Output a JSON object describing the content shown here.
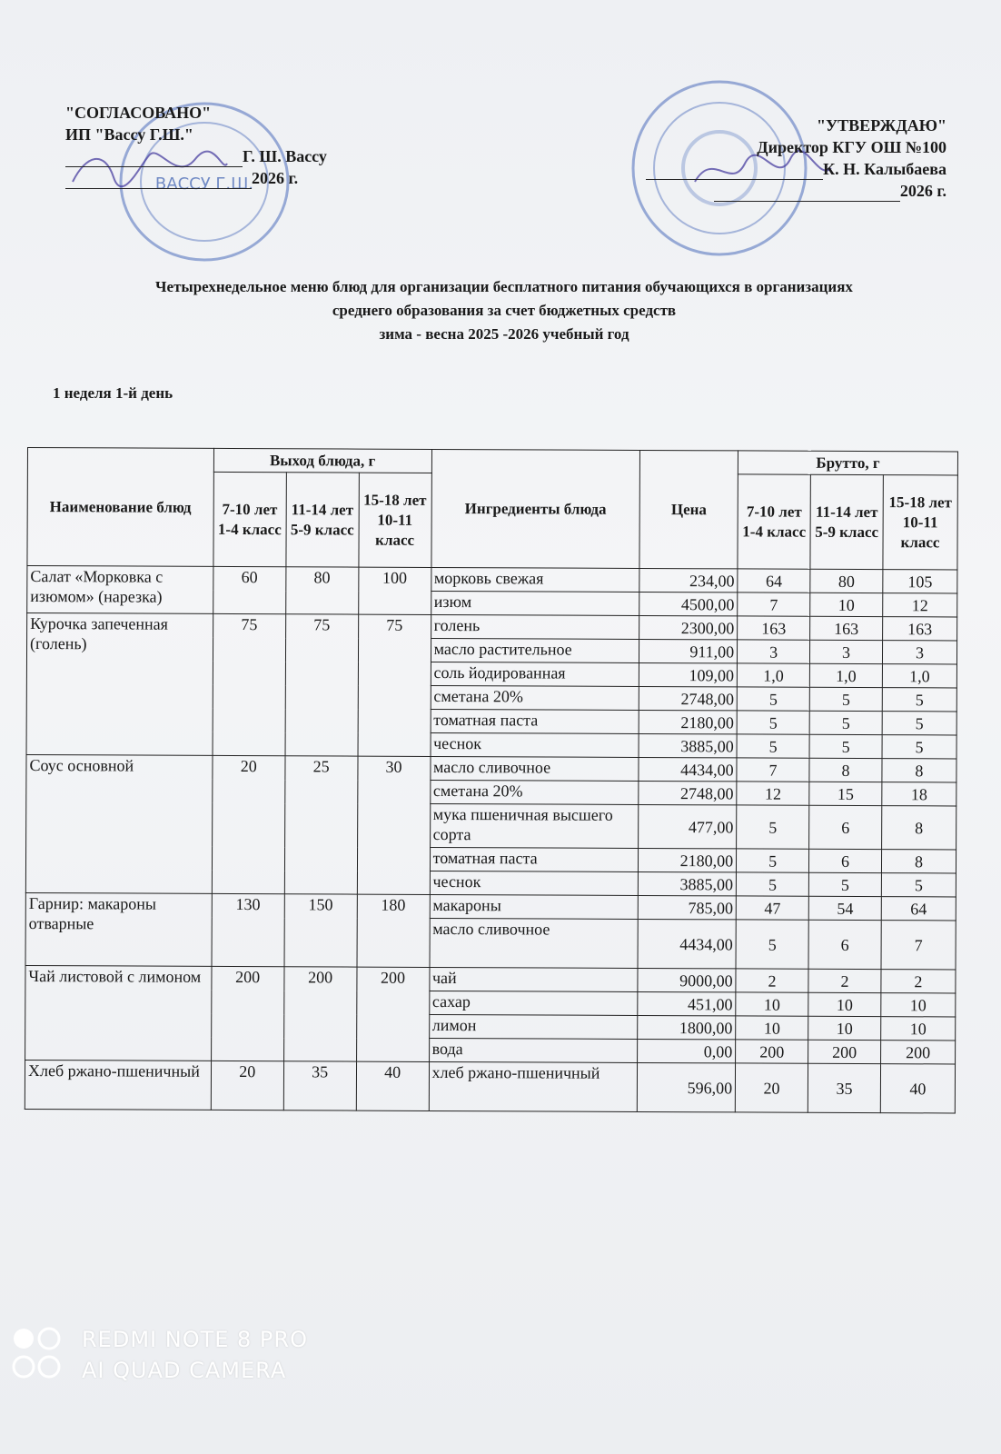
{
  "approval_left": {
    "heading": "\"СОГЛАСОВАНО\"",
    "org": "ИП \"Вассу Г.Ш.\"",
    "name": "Г. Ш. Вассу",
    "year": "2026 г."
  },
  "approval_right": {
    "heading": "\"УТВЕРЖДАЮ\"",
    "position": "Директор КГУ ОШ №100",
    "name": "К. Н. Калыбаева",
    "year": "2026 г."
  },
  "title": {
    "line1": "Четырехнедельное меню блюд для организации бесплатного питания обучающихся в организациях",
    "line2": "среднего образования за счет бюджетных средств",
    "line3": "зима - весна  2025 -2026 учебный год"
  },
  "week_label": "1 неделя 1-й день",
  "table": {
    "headers": {
      "dish": "Наименование блюд",
      "output": "Выход блюда, г",
      "output_cols": [
        "7-10 лет 1-4 класс",
        "11-14 лет 5-9 класс",
        "15-18 лет 10-11 класс"
      ],
      "ingredients": "Ингредиенты блюда",
      "price": "Цена",
      "brutto": "Брутто, г",
      "brutto_cols": [
        "7-10 лет 1-4 класс",
        "11-14 лет 5-9 класс",
        "15-18 лет 10-11 класс"
      ]
    },
    "dishes": [
      {
        "name": "Салат «Морковка с изюмом» (нарезка)",
        "output": [
          "60",
          "80",
          "100"
        ],
        "ingredients": [
          {
            "name": "морковь свежая",
            "price": "234,00",
            "brutto": [
              "64",
              "80",
              "105"
            ]
          },
          {
            "name": "изюм",
            "price": "4500,00",
            "brutto": [
              "7",
              "10",
              "12"
            ]
          }
        ]
      },
      {
        "name": "Курочка запеченная (голень)",
        "output": [
          "75",
          "75",
          "75"
        ],
        "ingredients": [
          {
            "name": "голень",
            "price": "2300,00",
            "brutto": [
              "163",
              "163",
              "163"
            ]
          },
          {
            "name": "масло растительное",
            "price": "911,00",
            "brutto": [
              "3",
              "3",
              "3"
            ]
          },
          {
            "name": "соль йодированная",
            "price": "109,00",
            "brutto": [
              "1,0",
              "1,0",
              "1,0"
            ]
          },
          {
            "name": "сметана 20%",
            "price": "2748,00",
            "brutto": [
              "5",
              "5",
              "5"
            ]
          },
          {
            "name": "томатная паста",
            "price": "2180,00",
            "brutto": [
              "5",
              "5",
              "5"
            ]
          },
          {
            "name": "чеснок",
            "price": "3885,00",
            "brutto": [
              "5",
              "5",
              "5"
            ]
          }
        ]
      },
      {
        "name": "Соус основной",
        "output": [
          "20",
          "25",
          "30"
        ],
        "ingredients": [
          {
            "name": "масло сливочное",
            "price": "4434,00",
            "brutto": [
              "7",
              "8",
              "8"
            ]
          },
          {
            "name": "сметана 20%",
            "price": "2748,00",
            "brutto": [
              "12",
              "15",
              "18"
            ]
          },
          {
            "name": "мука пшеничная высшего сорта",
            "price": "477,00",
            "brutto": [
              "5",
              "6",
              "8"
            ]
          },
          {
            "name": "томатная паста",
            "price": "2180,00",
            "brutto": [
              "5",
              "6",
              "8"
            ]
          },
          {
            "name": "чеснок",
            "price": "3885,00",
            "brutto": [
              "5",
              "5",
              "5"
            ]
          }
        ]
      },
      {
        "name": "Гарнир: макароны отварные",
        "output": [
          "130",
          "150",
          "180"
        ],
        "ingredients": [
          {
            "name": "макароны",
            "price": "785,00",
            "brutto": [
              "47",
              "54",
              "64"
            ]
          },
          {
            "name": "масло сливочное",
            "price": "4434,00",
            "brutto": [
              "5",
              "6",
              "7"
            ]
          }
        ]
      },
      {
        "name": "Чай листовой с лимоном",
        "output": [
          "200",
          "200",
          "200"
        ],
        "ingredients": [
          {
            "name": "чай",
            "price": "9000,00",
            "brutto": [
              "2",
              "2",
              "2"
            ]
          },
          {
            "name": "сахар",
            "price": "451,00",
            "brutto": [
              "10",
              "10",
              "10"
            ]
          },
          {
            "name": "лимон",
            "price": "1800,00",
            "brutto": [
              "10",
              "10",
              "10"
            ]
          },
          {
            "name": "вода",
            "price": "0,00",
            "brutto": [
              "200",
              "200",
              "200"
            ]
          }
        ]
      },
      {
        "name": "Хлеб ржано-пшеничный",
        "output": [
          "20",
          "35",
          "40"
        ],
        "ingredients": [
          {
            "name": "хлеб ржано-пшеничный",
            "price": "596,00",
            "brutto": [
              "20",
              "35",
              "40"
            ]
          }
        ]
      }
    ]
  },
  "stamp_left_text": "ВАССУ Г.Ш.",
  "signature_text": "06.01.26",
  "watermark": {
    "line1": "REDMI NOTE 8 PRO",
    "line2": "AI QUAD CAMERA"
  },
  "colors": {
    "stamp": "#3b5fb0",
    "ink": "#1a1a1a",
    "paper": "#eef0f3"
  }
}
